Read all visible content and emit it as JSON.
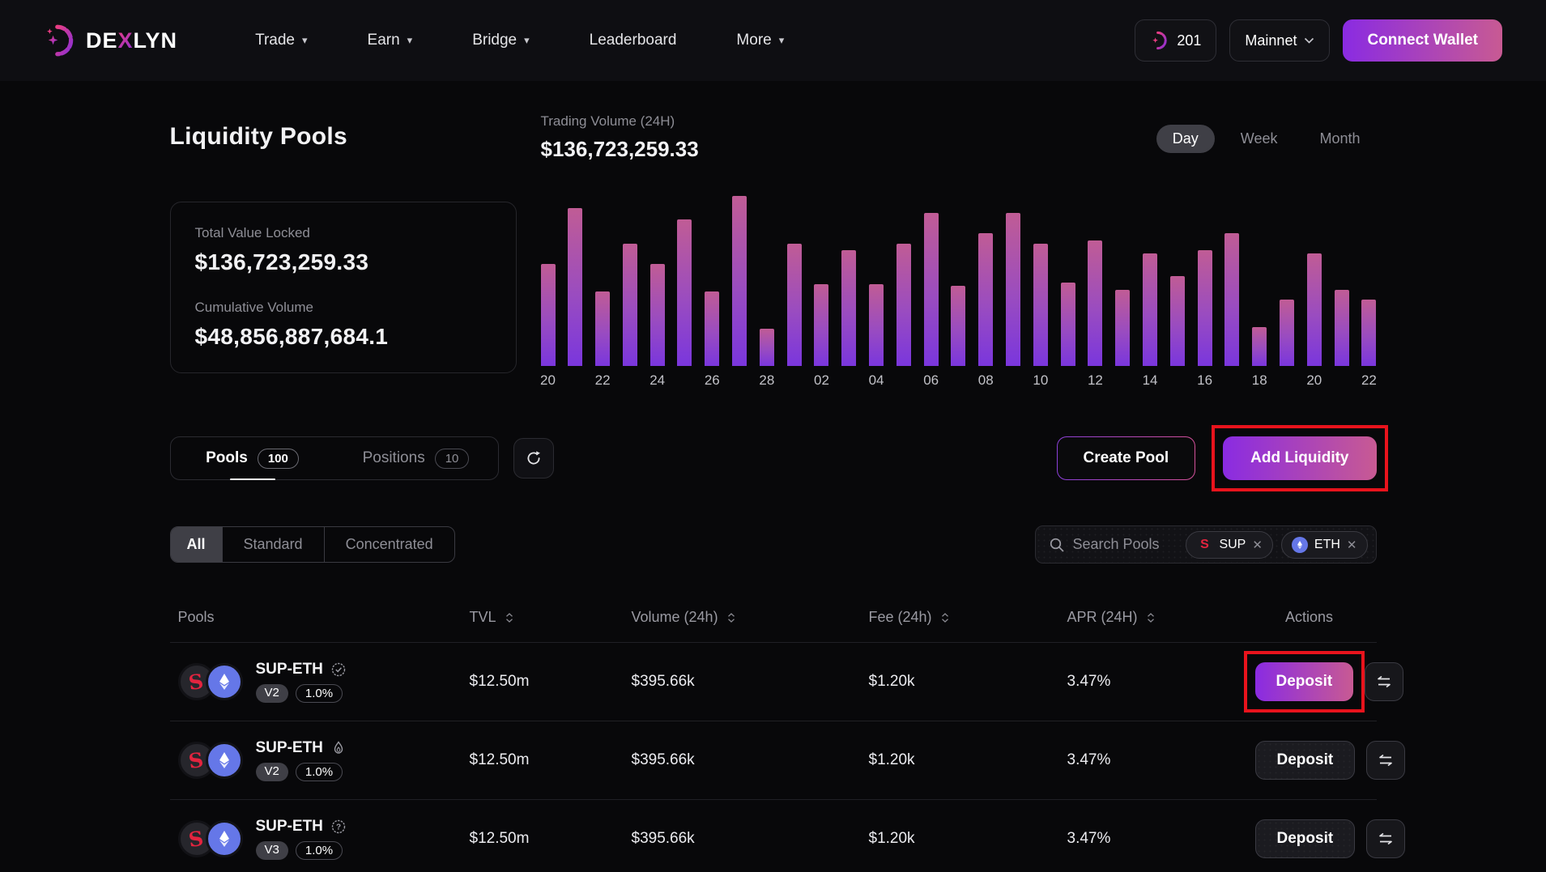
{
  "header": {
    "brand": {
      "pre": "DE",
      "x": "X",
      "post": "LYN"
    },
    "nav": [
      {
        "label": "Trade",
        "dropdown": true
      },
      {
        "label": "Earn",
        "dropdown": true
      },
      {
        "label": "Bridge",
        "dropdown": true
      },
      {
        "label": "Leaderboard",
        "dropdown": false
      },
      {
        "label": "More",
        "dropdown": true
      }
    ],
    "gas_count": "201",
    "network": "Mainnet",
    "connect_label": "Connect Wallet"
  },
  "hero": {
    "title": "Liquidity Pools",
    "volume_label": "Trading Volume (24H)",
    "volume_value": "$136,723,259.33",
    "tvl_label": "Total Value Locked",
    "tvl_value": "$136,723,259.33",
    "cumulative_label": "Cumulative Volume",
    "cumulative_value": "$48,856,887,684.1",
    "range_options": {
      "day": "Day",
      "week": "Week",
      "month": "Month"
    },
    "range_active": "Day"
  },
  "chart_data": {
    "type": "bar",
    "title": "Trading Volume (24H)",
    "total_label_value": "$136,723,259.33",
    "xlabel": "",
    "ylabel": "",
    "grid": false,
    "legend": false,
    "ylim": [
      0,
      100
    ],
    "bar_color_top": "#c05c95",
    "bar_color_bottom": "#7a36dd",
    "x_tick_labels": [
      "20",
      "22",
      "24",
      "26",
      "28",
      "02",
      "04",
      "06",
      "08",
      "10",
      "12",
      "14",
      "16",
      "18",
      "20",
      "22"
    ],
    "bars": [
      {
        "label": "20",
        "v": 60
      },
      {
        "label": "",
        "v": 93
      },
      {
        "label": "22",
        "v": 44
      },
      {
        "label": "",
        "v": 72
      },
      {
        "label": "24",
        "v": 60
      },
      {
        "label": "",
        "v": 86
      },
      {
        "label": "26",
        "v": 44
      },
      {
        "label": "",
        "v": 100
      },
      {
        "label": "28",
        "v": 22
      },
      {
        "label": "",
        "v": 72
      },
      {
        "label": "02",
        "v": 48
      },
      {
        "label": "",
        "v": 68
      },
      {
        "label": "04",
        "v": 48
      },
      {
        "label": "",
        "v": 72
      },
      {
        "label": "06",
        "v": 90
      },
      {
        "label": "",
        "v": 47
      },
      {
        "label": "08",
        "v": 78
      },
      {
        "label": "",
        "v": 90
      },
      {
        "label": "10",
        "v": 72
      },
      {
        "label": "",
        "v": 49
      },
      {
        "label": "12",
        "v": 74
      },
      {
        "label": "",
        "v": 45
      },
      {
        "label": "14",
        "v": 66
      },
      {
        "label": "",
        "v": 53
      },
      {
        "label": "16",
        "v": 68
      },
      {
        "label": "",
        "v": 78
      },
      {
        "label": "18",
        "v": 23
      },
      {
        "label": "",
        "v": 39
      },
      {
        "label": "20",
        "v": 66
      },
      {
        "label": "",
        "v": 45
      },
      {
        "label": "22",
        "v": 39
      }
    ]
  },
  "toolbar": {
    "tabs": [
      {
        "label": "Pools",
        "count": "100"
      },
      {
        "label": "Positions",
        "count": "10"
      }
    ],
    "create_pool": "Create Pool",
    "add_liquidity": "Add Liquidity"
  },
  "filters": {
    "options": {
      "all": "All",
      "standard": "Standard",
      "concentrated": "Concentrated"
    },
    "active": "All"
  },
  "search": {
    "placeholder": "Search Pools",
    "chips": [
      {
        "token": "SUP"
      },
      {
        "token": "ETH"
      }
    ]
  },
  "table": {
    "columns": {
      "pools": "Pools",
      "tvl": "TVL",
      "volume": "Volume (24h)",
      "fee": "Fee (24h)",
      "apr": "APR (24H)",
      "actions": "Actions"
    },
    "rows": [
      {
        "pair": "SUP-ETH",
        "badge": "verified",
        "version": "V2",
        "fee_tier": "1.0%",
        "tvl": "$12.50m",
        "volume": "$395.66k",
        "fee": "$1.20k",
        "apr": "3.47%",
        "action": "Deposit"
      },
      {
        "pair": "SUP-ETH",
        "badge": "flame",
        "version": "V2",
        "fee_tier": "1.0%",
        "tvl": "$12.50m",
        "volume": "$395.66k",
        "fee": "$1.20k",
        "apr": "3.47%",
        "action": "Deposit"
      },
      {
        "pair": "SUP-ETH",
        "badge": "question",
        "version": "V3",
        "fee_tier": "1.0%",
        "tvl": "$12.50m",
        "volume": "$395.66k",
        "fee": "$1.20k",
        "apr": "3.47%",
        "action": "Deposit"
      }
    ]
  },
  "colors": {
    "accent_gradient_start": "#8a2be2",
    "accent_gradient_end": "#c85a93",
    "highlight_red": "#e8131c",
    "sup_token_red": "#e3243f",
    "eth_token_blue": "#6577e8"
  }
}
